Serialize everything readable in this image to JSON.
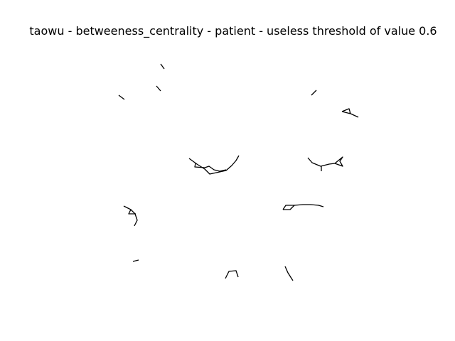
{
  "title": "taowu - betweeness_centrality - patient - useless threshold of value 0.6",
  "figure": {
    "edge_color": "#000000",
    "background": "#ffffff"
  }
}
